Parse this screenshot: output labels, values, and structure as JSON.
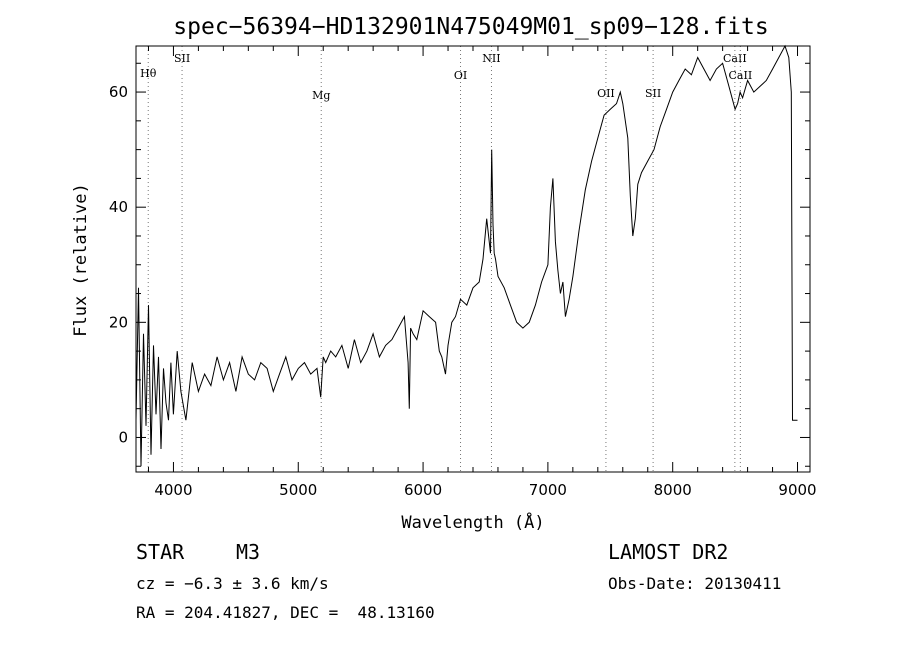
{
  "chart_data": {
    "type": "line",
    "title": "spec−56394−HD132901N475049M01_sp09−128.fits",
    "xlabel": "Wavelength (Å)",
    "ylabel": "Flux (relative)",
    "xlim": [
      3700,
      9100
    ],
    "ylim": [
      -6,
      68
    ],
    "xticks": [
      4000,
      5000,
      6000,
      7000,
      8000,
      9000
    ],
    "yticks": [
      0,
      20,
      40,
      60
    ],
    "grid": false,
    "series": [
      {
        "x": [
          3700,
          3720,
          3740,
          3760,
          3780,
          3800,
          3820,
          3840,
          3860,
          3880,
          3900,
          3920,
          3940,
          3960,
          3980,
          4000,
          4030,
          4060,
          4100,
          4150,
          4200,
          4250,
          4300,
          4350,
          4400,
          4450,
          4500,
          4550,
          4600,
          4650,
          4700,
          4750,
          4800,
          4850,
          4900,
          4950,
          5000,
          5050,
          5100,
          5150,
          5180,
          5200,
          5220,
          5260,
          5300,
          5350,
          5400,
          5450,
          5500,
          5550,
          5600,
          5650,
          5700,
          5750,
          5800,
          5850,
          5880,
          5890,
          5900,
          5920,
          5950,
          6000,
          6050,
          6100,
          6130,
          6150,
          6180,
          6200,
          6230,
          6260,
          6300,
          6350,
          6400,
          6450,
          6480,
          6510,
          6540,
          6550,
          6560,
          6570,
          6580,
          6600,
          6650,
          6700,
          6750,
          6800,
          6850,
          6900,
          6950,
          7000,
          7020,
          7040,
          7060,
          7080,
          7100,
          7120,
          7140,
          7170,
          7200,
          7250,
          7300,
          7350,
          7400,
          7450,
          7500,
          7550,
          7580,
          7600,
          7620,
          7640,
          7660,
          7680,
          7700,
          7720,
          7750,
          7800,
          7850,
          7900,
          7950,
          8000,
          8050,
          8100,
          8150,
          8200,
          8250,
          8300,
          8350,
          8400,
          8450,
          8500,
          8520,
          8540,
          8560,
          8600,
          8650,
          8700,
          8750,
          8800,
          8850,
          8900,
          8930,
          8950,
          8960,
          8980,
          9000
        ],
        "y": [
          3,
          26,
          -5,
          18,
          2,
          23,
          -3,
          16,
          4,
          14,
          -2,
          12,
          6,
          3,
          13,
          4,
          15,
          8,
          3,
          13,
          8,
          11,
          9,
          14,
          10,
          13,
          8,
          14,
          11,
          10,
          13,
          12,
          8,
          11,
          14,
          10,
          12,
          13,
          11,
          12,
          7,
          14,
          13,
          15,
          14,
          16,
          12,
          17,
          13,
          15,
          18,
          14,
          16,
          17,
          19,
          21,
          13,
          5,
          19,
          18,
          17,
          22,
          21,
          20,
          15,
          14,
          11,
          16,
          20,
          21,
          24,
          23,
          26,
          27,
          31,
          38,
          32,
          50,
          37,
          32,
          31,
          28,
          26,
          23,
          20,
          19,
          20,
          23,
          27,
          30,
          40,
          45,
          34,
          29,
          25,
          27,
          21,
          24,
          28,
          36,
          43,
          48,
          52,
          56,
          57,
          58,
          60,
          58,
          55,
          52,
          42,
          35,
          38,
          44,
          46,
          48,
          50,
          54,
          57,
          60,
          62,
          64,
          63,
          66,
          64,
          62,
          64,
          65,
          61,
          57,
          58,
          60,
          59,
          62,
          60,
          61,
          62,
          64,
          66,
          68,
          66,
          60,
          3,
          3,
          3
        ]
      }
    ],
    "line_labels": [
      {
        "text": "Hθ",
        "x": 3798
      },
      {
        "text": "SII",
        "x": 4069
      },
      {
        "text": "Mg",
        "x": 5184
      },
      {
        "text": "OI",
        "x": 6300
      },
      {
        "text": "NII",
        "x": 6548
      },
      {
        "text": "OII",
        "x": 7465
      },
      {
        "text": "SII",
        "x": 7843
      },
      {
        "text": "CaII",
        "x": 8498
      },
      {
        "text": "CaII",
        "x": 8542
      }
    ]
  },
  "info": {
    "object_type": "STAR",
    "subclass": "M3",
    "cz": "cz = −6.3 ± 3.6 km/s",
    "coords": "RA = 204.41827, DEC =  48.13160",
    "survey": "LAMOST DR2",
    "obs_date": "Obs-Date: 20130411"
  }
}
